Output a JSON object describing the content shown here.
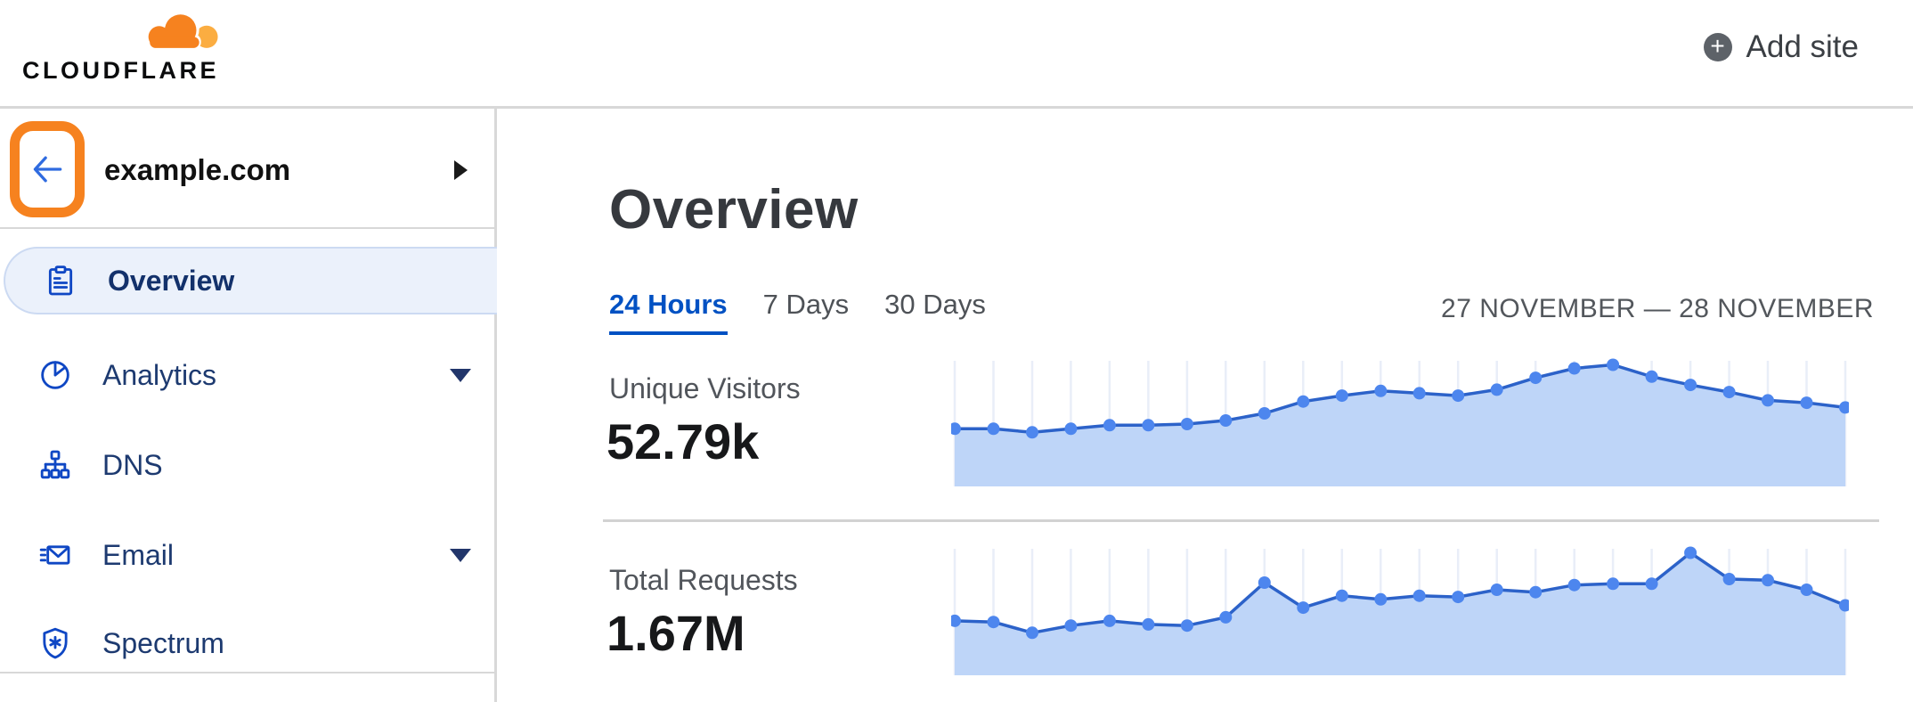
{
  "header": {
    "logo_text": "CLOUDFLARE",
    "add_site_label": "Add site"
  },
  "sidebar": {
    "site": "example.com",
    "items": [
      {
        "label": "Overview",
        "icon": "clipboard-icon",
        "selected": true,
        "has_caret": false
      },
      {
        "label": "Analytics",
        "icon": "pie-chart-icon",
        "selected": false,
        "has_caret": true
      },
      {
        "label": "DNS",
        "icon": "network-icon",
        "selected": false,
        "has_caret": false
      },
      {
        "label": "Email",
        "icon": "email-icon",
        "selected": false,
        "has_caret": true
      },
      {
        "label": "Spectrum",
        "icon": "shield-icon",
        "selected": false,
        "has_caret": false
      }
    ]
  },
  "main": {
    "title": "Overview",
    "tabs": [
      {
        "label": "24 Hours",
        "active": true
      },
      {
        "label": "7 Days",
        "active": false
      },
      {
        "label": "30 Days",
        "active": false
      }
    ],
    "date_range": "27 NOVEMBER — 28 NOVEMBER",
    "stats": [
      {
        "label": "Unique Visitors",
        "value": "52.79k"
      },
      {
        "label": "Total Requests",
        "value": "1.67M"
      }
    ]
  },
  "colors": {
    "brand_orange": "#f6821f",
    "accent_blue": "#0051c3",
    "chart_line": "#2c62c9",
    "chart_dot": "#4d86ee",
    "chart_fill": "#bed5f8",
    "chart_gridline": "#e9eef8",
    "selected_item_bg": "#ebf1fb"
  },
  "chart_data": [
    {
      "type": "area",
      "title": "Unique Visitors",
      "total_shown": "52.79k",
      "time_range": "24 Hours (27 November — 28 November)",
      "x_axis": {
        "labels_visible": false,
        "points": 24,
        "unit": "hour"
      },
      "y_axis": {
        "labels_visible": false,
        "unit": "percent of max hourly value"
      },
      "grid": "vertical lines at each point",
      "legend": "none",
      "values_pct": [
        46,
        46,
        43,
        46,
        49,
        49,
        50,
        53,
        59,
        69,
        74,
        78,
        76,
        74,
        79,
        89,
        97,
        100,
        90,
        83,
        77,
        70,
        68,
        64
      ],
      "ylim": [
        0,
        100
      ]
    },
    {
      "type": "area",
      "title": "Total Requests",
      "total_shown": "1.67M",
      "time_range": "24 Hours (27 November — 28 November)",
      "x_axis": {
        "labels_visible": false,
        "points": 24,
        "unit": "hour"
      },
      "y_axis": {
        "labels_visible": false,
        "unit": "percent of max hourly value"
      },
      "grid": "vertical lines at each point",
      "legend": "none",
      "values_pct": [
        43,
        42,
        33,
        39,
        43,
        40,
        39,
        46,
        75,
        54,
        64,
        61,
        64,
        63,
        69,
        67,
        73,
        74,
        74,
        100,
        78,
        77,
        69,
        56
      ],
      "ylim": [
        0,
        100
      ]
    }
  ]
}
